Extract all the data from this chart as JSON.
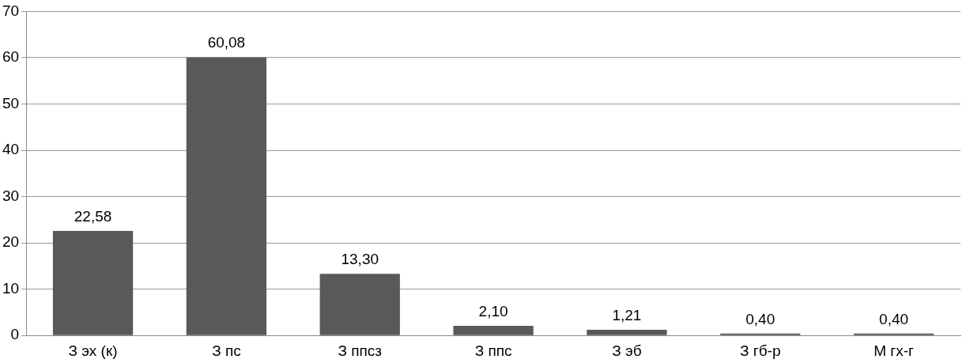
{
  "chart_data": {
    "type": "bar",
    "categories": [
      "З эх (к)",
      "З пс",
      "З ппсз",
      "З ппс",
      "З эб",
      "З гб-р",
      "М гх-г"
    ],
    "values": [
      22.58,
      60.08,
      13.3,
      2.1,
      1.21,
      0.4,
      0.4
    ],
    "value_labels": [
      "22,58",
      "60,08",
      "13,30",
      "2,10",
      "1,21",
      "0,40",
      "0,40"
    ],
    "color": "#595959",
    "ylim": [
      0,
      70
    ],
    "yticks": [
      0,
      10,
      20,
      30,
      40,
      50,
      60,
      70
    ],
    "grid": "y",
    "legend": false
  }
}
